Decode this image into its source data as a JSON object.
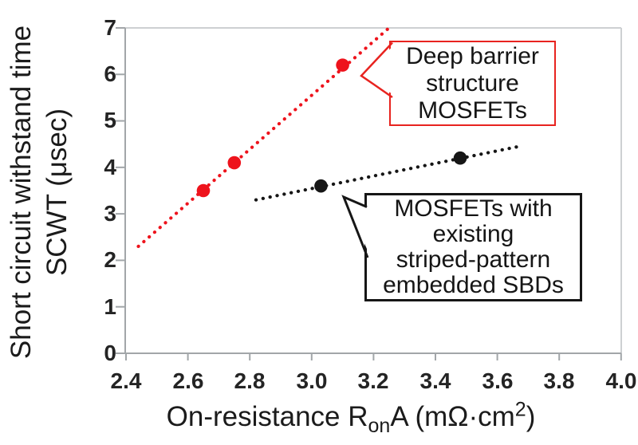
{
  "figure": {
    "bg": "#ffffff",
    "colors": {
      "red": "#ee131c",
      "black": "#161616",
      "axis_line": "#a2a6a9",
      "frame_line": "#cdd0d2",
      "text": "#1b1b1b"
    }
  },
  "axes": {
    "y": {
      "title_line1": "Short circuit withstand time",
      "title_line2": "SCWT (μsec)",
      "tick_labels": [
        "7",
        "6",
        "5",
        "4",
        "3",
        "2",
        "1",
        "0"
      ]
    },
    "x": {
      "title_main": "On-resistance R",
      "title_sub": "on",
      "title_mid": "A (mΩ·cm",
      "title_sup": "2",
      "title_end": ")",
      "tick_labels": [
        "2.4",
        "2.6",
        "2.8",
        "3.0",
        "3.2",
        "3.4",
        "3.6",
        "3.8",
        "4.0"
      ]
    }
  },
  "callouts": {
    "red": {
      "lines": [
        "Deep barrier",
        "structure",
        "MOSFETs"
      ]
    },
    "black": {
      "lines": [
        "MOSFETs with",
        "existing",
        "striped-pattern",
        "embedded SBDs"
      ]
    }
  },
  "chart_data": {
    "type": "scatter",
    "title": "",
    "xlabel": "On-resistance RonA (mΩ·cm²)",
    "ylabel": "Short circuit withstand time SCWT (μsec)",
    "xlim": [
      2.4,
      4.0
    ],
    "ylim": [
      0,
      7
    ],
    "x_ticks": [
      2.4,
      2.6,
      2.8,
      3.0,
      3.2,
      3.4,
      3.6,
      3.8,
      4.0
    ],
    "y_ticks": [
      7,
      6,
      5,
      4,
      3,
      2,
      1,
      0
    ],
    "grid": false,
    "legend_position": "callout annotations inside plot",
    "series": [
      {
        "name": "Deep barrier structure MOSFETs",
        "color": "#ee131c",
        "marker": "circle",
        "points": [
          [
            2.65,
            3.5
          ],
          [
            2.75,
            4.1
          ],
          [
            3.1,
            6.2
          ]
        ],
        "trendline": {
          "style": "dotted",
          "from": [
            2.44,
            2.3
          ],
          "to": [
            3.25,
            7.0
          ]
        }
      },
      {
        "name": "MOSFETs with existing striped-pattern embedded SBDs",
        "color": "#161616",
        "marker": "circle",
        "points": [
          [
            3.03,
            3.6
          ],
          [
            3.48,
            4.2
          ]
        ],
        "trendline": {
          "style": "dotted",
          "from": [
            2.82,
            3.3
          ],
          "to": [
            3.67,
            4.45
          ]
        }
      }
    ]
  }
}
